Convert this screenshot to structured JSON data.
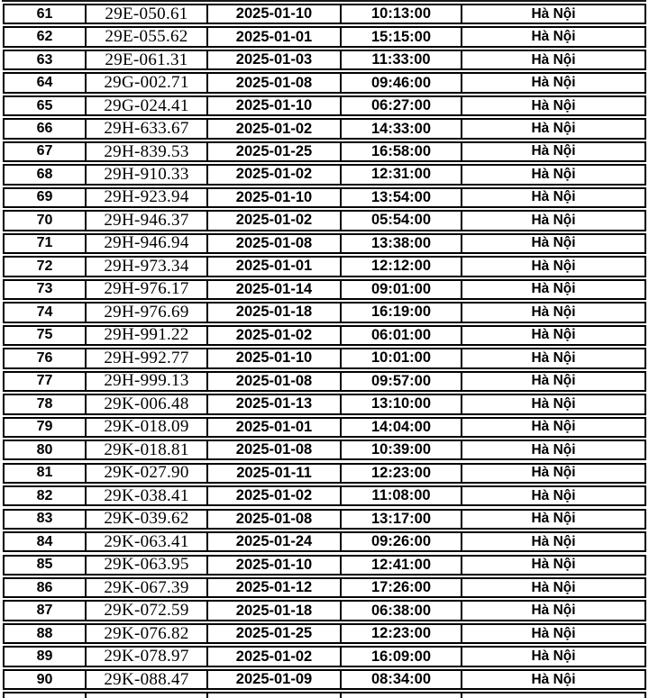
{
  "colors": {
    "background": "#ffffff",
    "border": "#000000",
    "text": "#000000"
  },
  "table": {
    "description": "cropped table of vehicles: row number, license plate, date, time, location",
    "row_keys": [
      "no",
      "plate",
      "date",
      "time",
      "location"
    ],
    "rows": [
      {
        "no": "61",
        "plate": "29E-050.61",
        "date": "2025-01-10",
        "time": "10:13:00",
        "location": "Hà Nội"
      },
      {
        "no": "62",
        "plate": "29E-055.62",
        "date": "2025-01-01",
        "time": "15:15:00",
        "location": "Hà Nội"
      },
      {
        "no": "63",
        "plate": "29E-061.31",
        "date": "2025-01-03",
        "time": "11:33:00",
        "location": "Hà Nội"
      },
      {
        "no": "64",
        "plate": "29G-002.71",
        "date": "2025-01-08",
        "time": "09:46:00",
        "location": "Hà Nội"
      },
      {
        "no": "65",
        "plate": "29G-024.41",
        "date": "2025-01-10",
        "time": "06:27:00",
        "location": "Hà Nội"
      },
      {
        "no": "66",
        "plate": "29H-633.67",
        "date": "2025-01-02",
        "time": "14:33:00",
        "location": "Hà Nội"
      },
      {
        "no": "67",
        "plate": "29H-839.53",
        "date": "2025-01-25",
        "time": "16:58:00",
        "location": "Hà Nội"
      },
      {
        "no": "68",
        "plate": "29H-910.33",
        "date": "2025-01-02",
        "time": "12:31:00",
        "location": "Hà Nội"
      },
      {
        "no": "69",
        "plate": "29H-923.94",
        "date": "2025-01-10",
        "time": "13:54:00",
        "location": "Hà Nội"
      },
      {
        "no": "70",
        "plate": "29H-946.37",
        "date": "2025-01-02",
        "time": "05:54:00",
        "location": "Hà Nội"
      },
      {
        "no": "71",
        "plate": "29H-946.94",
        "date": "2025-01-08",
        "time": "13:38:00",
        "location": "Hà Nội"
      },
      {
        "no": "72",
        "plate": "29H-973.34",
        "date": "2025-01-01",
        "time": "12:12:00",
        "location": "Hà Nội"
      },
      {
        "no": "73",
        "plate": "29H-976.17",
        "date": "2025-01-14",
        "time": "09:01:00",
        "location": "Hà Nội"
      },
      {
        "no": "74",
        "plate": "29H-976.69",
        "date": "2025-01-18",
        "time": "16:19:00",
        "location": "Hà Nội"
      },
      {
        "no": "75",
        "plate": "29H-991.22",
        "date": "2025-01-02",
        "time": "06:01:00",
        "location": "Hà Nội"
      },
      {
        "no": "76",
        "plate": "29H-992.77",
        "date": "2025-01-10",
        "time": "10:01:00",
        "location": "Hà Nội"
      },
      {
        "no": "77",
        "plate": "29H-999.13",
        "date": "2025-01-08",
        "time": "09:57:00",
        "location": "Hà Nội"
      },
      {
        "no": "78",
        "plate": "29K-006.48",
        "date": "2025-01-13",
        "time": "13:10:00",
        "location": "Hà Nội"
      },
      {
        "no": "79",
        "plate": "29K-018.09",
        "date": "2025-01-01",
        "time": "14:04:00",
        "location": "Hà Nội"
      },
      {
        "no": "80",
        "plate": "29K-018.81",
        "date": "2025-01-08",
        "time": "10:39:00",
        "location": "Hà Nội"
      },
      {
        "no": "81",
        "plate": "29K-027.90",
        "date": "2025-01-11",
        "time": "12:23:00",
        "location": "Hà Nội"
      },
      {
        "no": "82",
        "plate": "29K-038.41",
        "date": "2025-01-02",
        "time": "11:08:00",
        "location": "Hà Nội"
      },
      {
        "no": "83",
        "plate": "29K-039.62",
        "date": "2025-01-08",
        "time": "13:17:00",
        "location": "Hà Nội"
      },
      {
        "no": "84",
        "plate": "29K-063.41",
        "date": "2025-01-24",
        "time": "09:26:00",
        "location": "Hà Nội"
      },
      {
        "no": "85",
        "plate": "29K-063.95",
        "date": "2025-01-10",
        "time": "12:41:00",
        "location": "Hà Nội"
      },
      {
        "no": "86",
        "plate": "29K-067.39",
        "date": "2025-01-12",
        "time": "17:26:00",
        "location": "Hà Nội"
      },
      {
        "no": "87",
        "plate": "29K-072.59",
        "date": "2025-01-18",
        "time": "06:38:00",
        "location": "Hà Nội"
      },
      {
        "no": "88",
        "plate": "29K-076.82",
        "date": "2025-01-25",
        "time": "12:23:00",
        "location": "Hà Nội"
      },
      {
        "no": "89",
        "plate": "29K-078.97",
        "date": "2025-01-02",
        "time": "16:09:00",
        "location": "Hà Nội"
      },
      {
        "no": "90",
        "plate": "29K-088.47",
        "date": "2025-01-09",
        "time": "08:34:00",
        "location": "Hà Nội"
      }
    ]
  }
}
